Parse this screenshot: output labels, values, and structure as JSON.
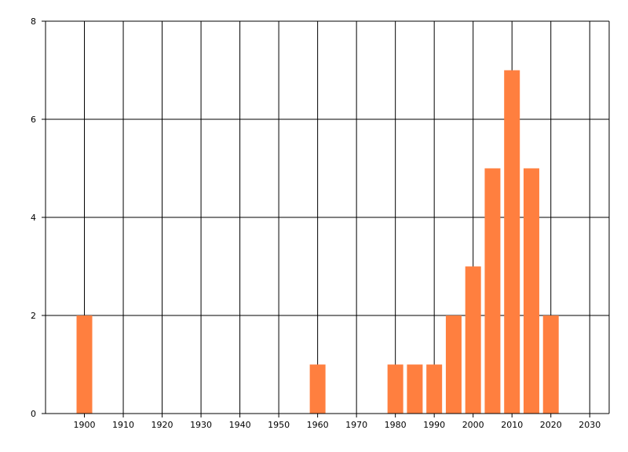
{
  "chart_data": {
    "type": "bar",
    "x": [
      1900,
      1960,
      1980,
      1985,
      1990,
      1995,
      2000,
      2005,
      2010,
      2015,
      2020
    ],
    "values": [
      2,
      1,
      1,
      1,
      1,
      2,
      3,
      5,
      7,
      5,
      2
    ],
    "color": "#ff7f3f",
    "xlim": [
      1890,
      2035
    ],
    "xticks": [
      1900,
      1910,
      1920,
      1930,
      1940,
      1950,
      1960,
      1970,
      1980,
      1990,
      2000,
      2010,
      2020,
      2030
    ],
    "ylim": [
      0,
      8
    ],
    "yticks": [
      0,
      2,
      4,
      6,
      8
    ],
    "grid": true
  }
}
